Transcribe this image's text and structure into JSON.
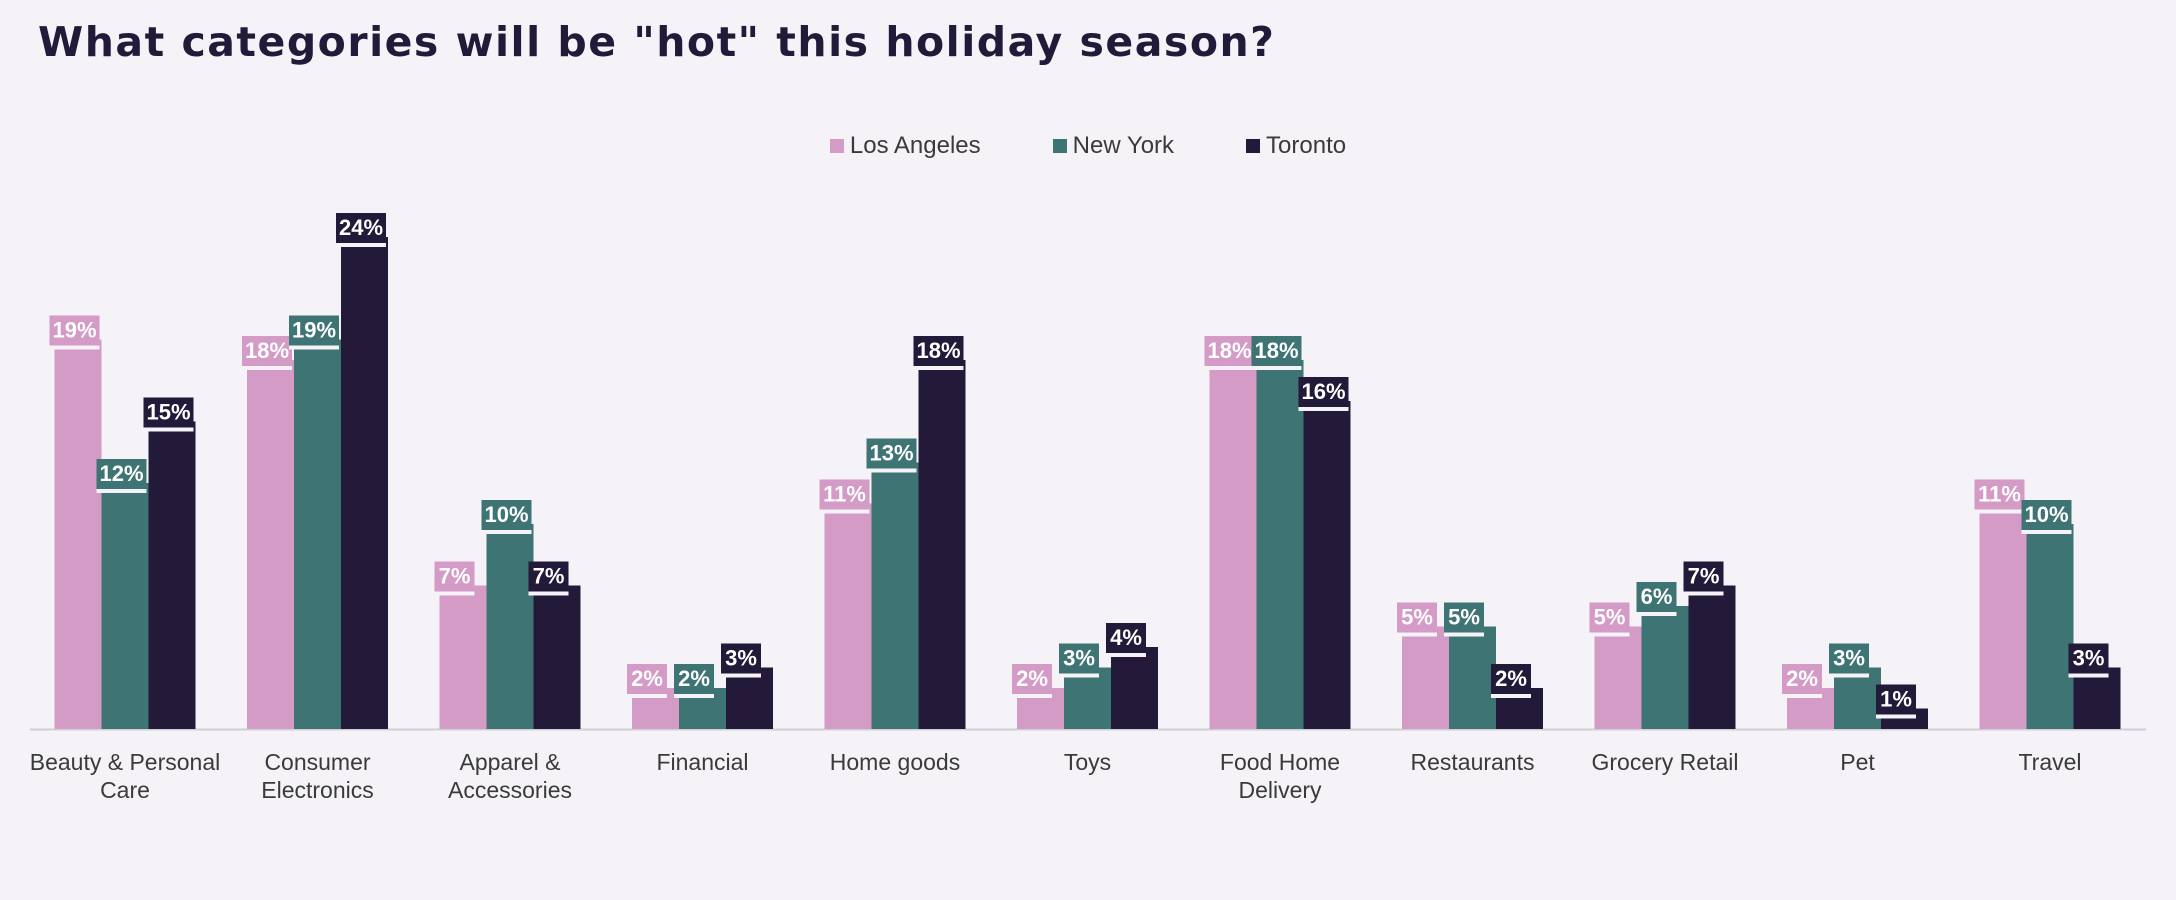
{
  "chart_data": {
    "type": "bar",
    "title": "What categories will be \"hot\" this holiday season?",
    "categories": [
      [
        "Beauty & Personal",
        "Care"
      ],
      [
        "Consumer",
        "Electronics"
      ],
      [
        "Apparel &",
        "Accessories"
      ],
      [
        "Financial"
      ],
      [
        "Home goods"
      ],
      [
        "Toys"
      ],
      [
        "Food Home",
        "Delivery"
      ],
      [
        "Restaurants"
      ],
      [
        "Grocery Retail"
      ],
      [
        "Pet"
      ],
      [
        "Travel"
      ]
    ],
    "series": [
      {
        "name": "Los Angeles",
        "color": "#d39bc6",
        "values": [
          19,
          18,
          7,
          2,
          11,
          2,
          18,
          5,
          5,
          2,
          11
        ]
      },
      {
        "name": "New York",
        "color": "#3f7474",
        "values": [
          12,
          19,
          10,
          2,
          13,
          3,
          18,
          5,
          6,
          3,
          10
        ]
      },
      {
        "name": "Toronto",
        "color": "#221a38",
        "values": [
          15,
          24,
          7,
          3,
          18,
          4,
          16,
          2,
          7,
          1,
          3
        ]
      }
    ],
    "value_suffix": "%",
    "ylim": [
      0,
      24
    ],
    "legend_position": "top-center",
    "grid": false
  }
}
